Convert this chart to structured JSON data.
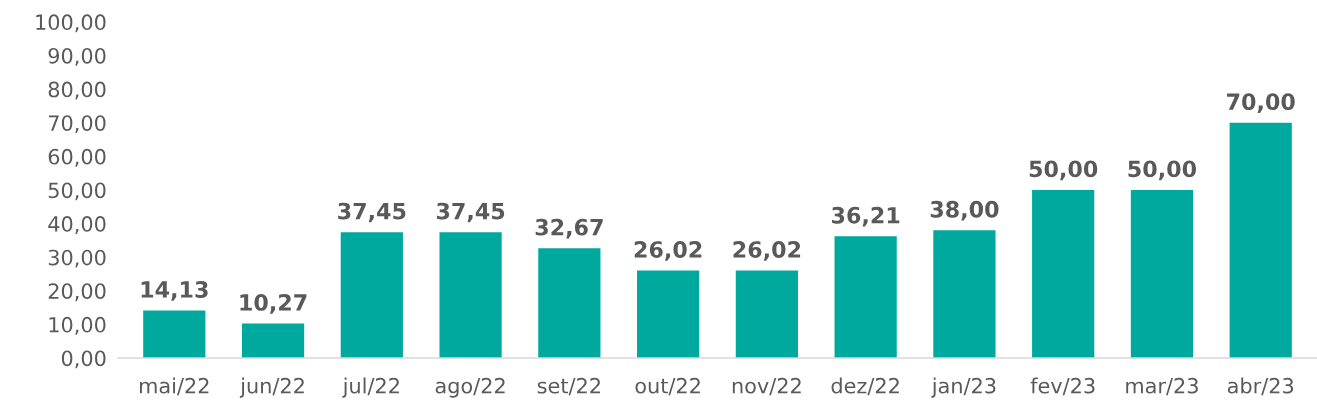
{
  "chart_data": {
    "type": "bar",
    "categories": [
      "mai/22",
      "jun/22",
      "jul/22",
      "ago/22",
      "set/22",
      "out/22",
      "nov/22",
      "dez/22",
      "jan/23",
      "fev/23",
      "mar/23",
      "abr/23"
    ],
    "values": [
      14.13,
      10.27,
      37.45,
      37.45,
      32.67,
      26.02,
      26.02,
      36.21,
      38.0,
      50.0,
      50.0,
      70.0
    ],
    "value_labels": [
      "14,13",
      "10,27",
      "37,45",
      "37,45",
      "32,67",
      "26,02",
      "26,02",
      "36,21",
      "38,00",
      "50,00",
      "50,00",
      "70,00"
    ],
    "color": "#00a99d",
    "ylim": [
      0,
      100
    ],
    "yticks": [
      {
        "value": 0,
        "label": "0,00"
      },
      {
        "value": 10,
        "label": "10,00"
      },
      {
        "value": 20,
        "label": "20,00"
      },
      {
        "value": 30,
        "label": "30,00"
      },
      {
        "value": 40,
        "label": "40,00"
      },
      {
        "value": 50,
        "label": "50,00"
      },
      {
        "value": 60,
        "label": "60,00"
      },
      {
        "value": 70,
        "label": "70,00"
      },
      {
        "value": 80,
        "label": "80,00"
      },
      {
        "value": 90,
        "label": "90,00"
      },
      {
        "value": 100,
        "label": "100,00"
      }
    ],
    "grid": false,
    "legend": false
  }
}
